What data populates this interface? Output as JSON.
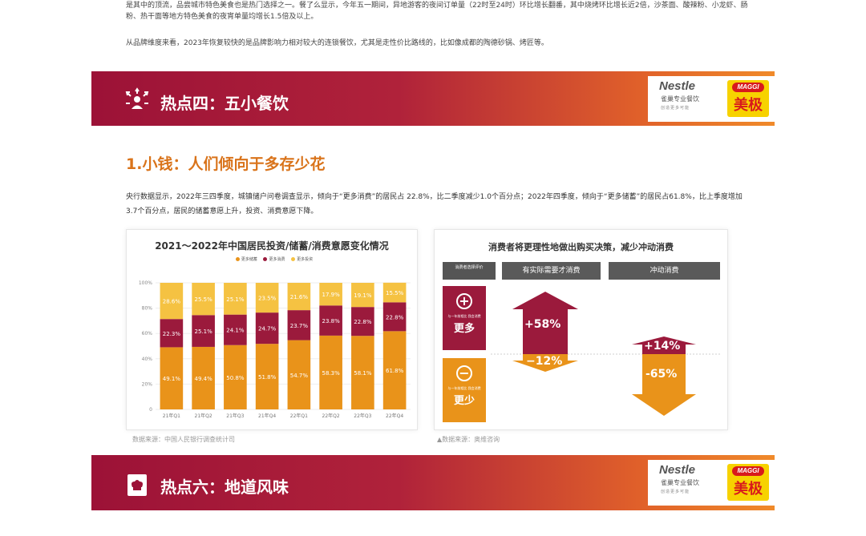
{
  "intro": {
    "p1": "是其中的顶流，品尝城市特色美食也是热门选择之一。餐了么显示，今年五一期间，异地游客的夜间订单量（22时至24时）环比增长翻番，其中烧烤环比增长近2倍，沙茶面、酸辣粉、小龙虾、肠粉、热干面等地方特色美食的夜宵单量均增长1.5倍及以上。",
    "p2": "从品牌维度来看，2023年恢复较快的是品牌影响力相对较大的连锁餐饮，尤其是走性价比路线的，比如像成都的陶德砂锅、烤匠等。"
  },
  "banner4": {
    "title": "热点四：五小餐饮"
  },
  "banner6": {
    "title": "热点六：地道风味"
  },
  "logos": {
    "nestle": "Nestle",
    "nestle_cn": "雀巢专业餐饮",
    "nestle_sub": "创造更多可能",
    "maggi": "MAGGI",
    "maggi_cn": "美极"
  },
  "section": {
    "heading": "1.小钱：人们倾向于多存少花",
    "body": "央行数据显示，2022年三四季度，城镇储户问卷调查显示，倾向于“更多消费”的居民占 22.8%，比二季度减少1.0个百分点；2022年四季度，倾向于“更多储蓄”的居民占61.8%，比上季度增加3.7个百分点，居民的储蓄意愿上升，投资、消费意愿下降。"
  },
  "chart_data": {
    "type": "bar",
    "title": "2021～2022年中国居民投资/储蓄/消费意愿变化情况",
    "categories": [
      "21年Q1",
      "21年Q2",
      "21年Q3",
      "21年Q4",
      "22年Q1",
      "22年Q2",
      "22年Q3",
      "22年Q4"
    ],
    "series": [
      {
        "name": "更多储蓄",
        "color": "#e9931a",
        "values": [
          49.1,
          49.4,
          50.8,
          51.8,
          54.7,
          58.3,
          58.1,
          61.8
        ]
      },
      {
        "name": "更多消费",
        "color": "#9b1a3c",
        "values": [
          22.3,
          25.1,
          24.1,
          24.7,
          23.7,
          23.8,
          22.8,
          22.8
        ]
      },
      {
        "name": "更多投资",
        "color": "#f5c242",
        "values": [
          28.6,
          25.5,
          25.1,
          23.5,
          21.6,
          17.9,
          19.1,
          15.5
        ]
      }
    ],
    "yticks": [
      "0",
      "20%",
      "40%",
      "60%",
      "80%",
      "100%"
    ],
    "ylim": [
      0,
      100
    ],
    "stacked": true,
    "legend_position": "top"
  },
  "right_panel": {
    "title": "消费者将更理性地做出购买决策，减少冲动消费",
    "side_label": "消费者选择评价",
    "col1": "有实际需要才消费",
    "col2": "冲动消费",
    "more_small": "与一年前相比 我会消费",
    "more": "更多",
    "less_small": "与一年前相比 我会消费",
    "less": "更少",
    "v1_up": "+58%",
    "v1_down": "−12%",
    "v2_up": "+14%",
    "v2_down": "-65%",
    "colors": {
      "maroon": "#9b1a3c",
      "orange": "#e9931a"
    }
  },
  "sources": {
    "left": "数据来源：中国人民银行调查统计司",
    "right": "▲数据来源：奥维咨询"
  }
}
